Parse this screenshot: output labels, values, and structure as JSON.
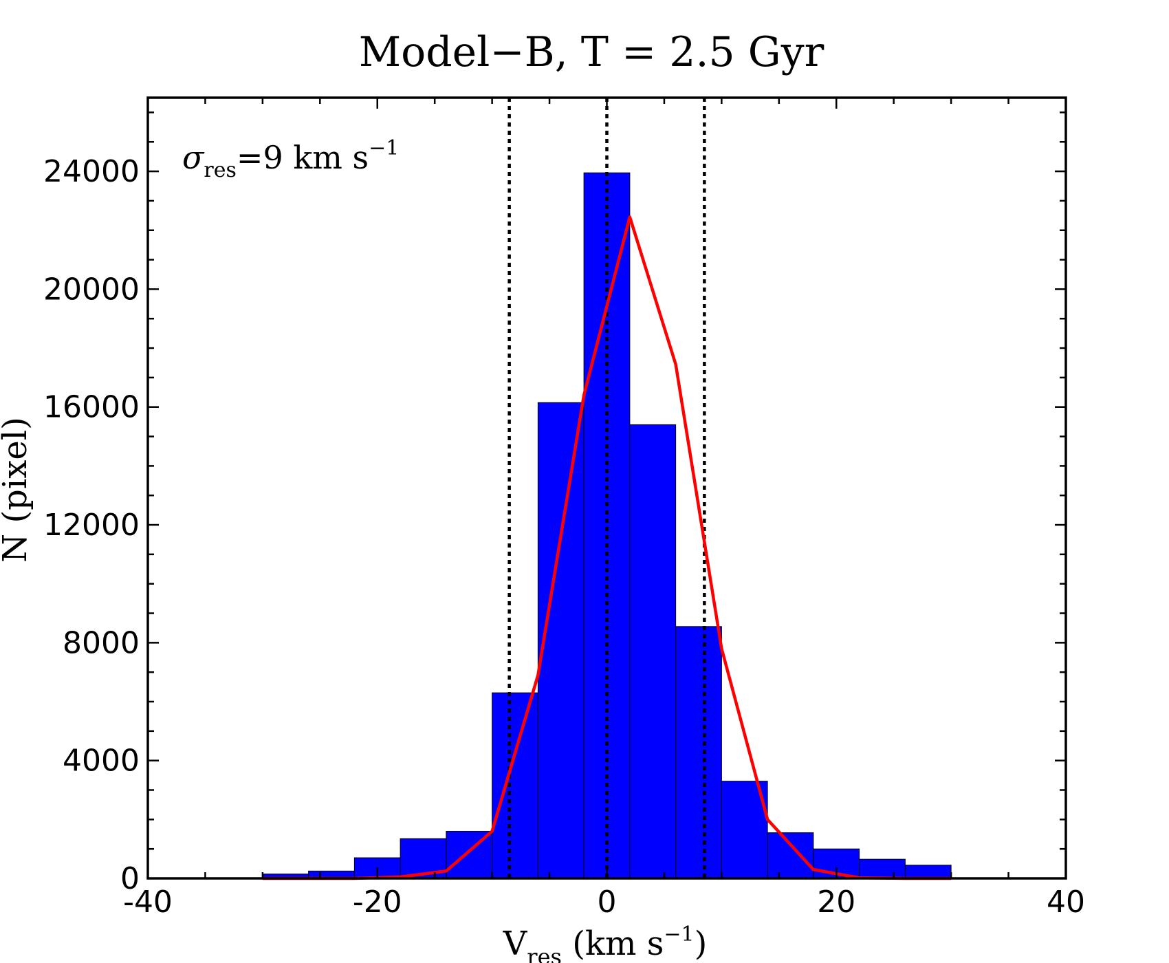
{
  "chart_data": {
    "type": "bar",
    "title": "Model−B, T = 2.5 Gyr",
    "xlabel": {
      "main": "V",
      "sub": "res",
      "unit_open": " (km s",
      "unit_sup": "−1",
      "unit_close": ")"
    },
    "ylabel": "N (pixel)",
    "annotation": {
      "symbol": "σ",
      "sub": "res",
      "text": "=9 km s",
      "sup": "−1"
    },
    "xlim": [
      -40,
      40
    ],
    "ylim": [
      0,
      26500
    ],
    "xticks": [
      -40,
      -20,
      0,
      20,
      40
    ],
    "xtick_labels": [
      "-40",
      "-20",
      "0",
      "20",
      "40"
    ],
    "yticks": [
      0,
      4000,
      8000,
      12000,
      16000,
      20000,
      24000
    ],
    "ytick_labels": [
      "0",
      "4000",
      "8000",
      "12000",
      "16000",
      "20000",
      "24000"
    ],
    "histogram": {
      "bin_edges": [
        -30,
        -26,
        -22,
        -18,
        -14,
        -10,
        -6,
        -2,
        2,
        6,
        10,
        14,
        18,
        22,
        26,
        30
      ],
      "counts": [
        150,
        250,
        700,
        1350,
        1600,
        6300,
        16150,
        23950,
        15400,
        8550,
        3300,
        1550,
        1000,
        650,
        450
      ],
      "color": "#0000ff"
    },
    "fit_curve": {
      "x": [
        -30,
        -26,
        -22,
        -18,
        -14,
        -10,
        -6,
        -2,
        2,
        6,
        10,
        14,
        18,
        22,
        26,
        30
      ],
      "y": [
        0,
        0,
        0,
        50,
        250,
        1600,
        6900,
        16400,
        22450,
        17450,
        7800,
        2000,
        300,
        20,
        0,
        0
      ],
      "color": "#ff0000"
    },
    "vlines": [
      -8.5,
      0,
      8.5
    ],
    "grid": false
  }
}
